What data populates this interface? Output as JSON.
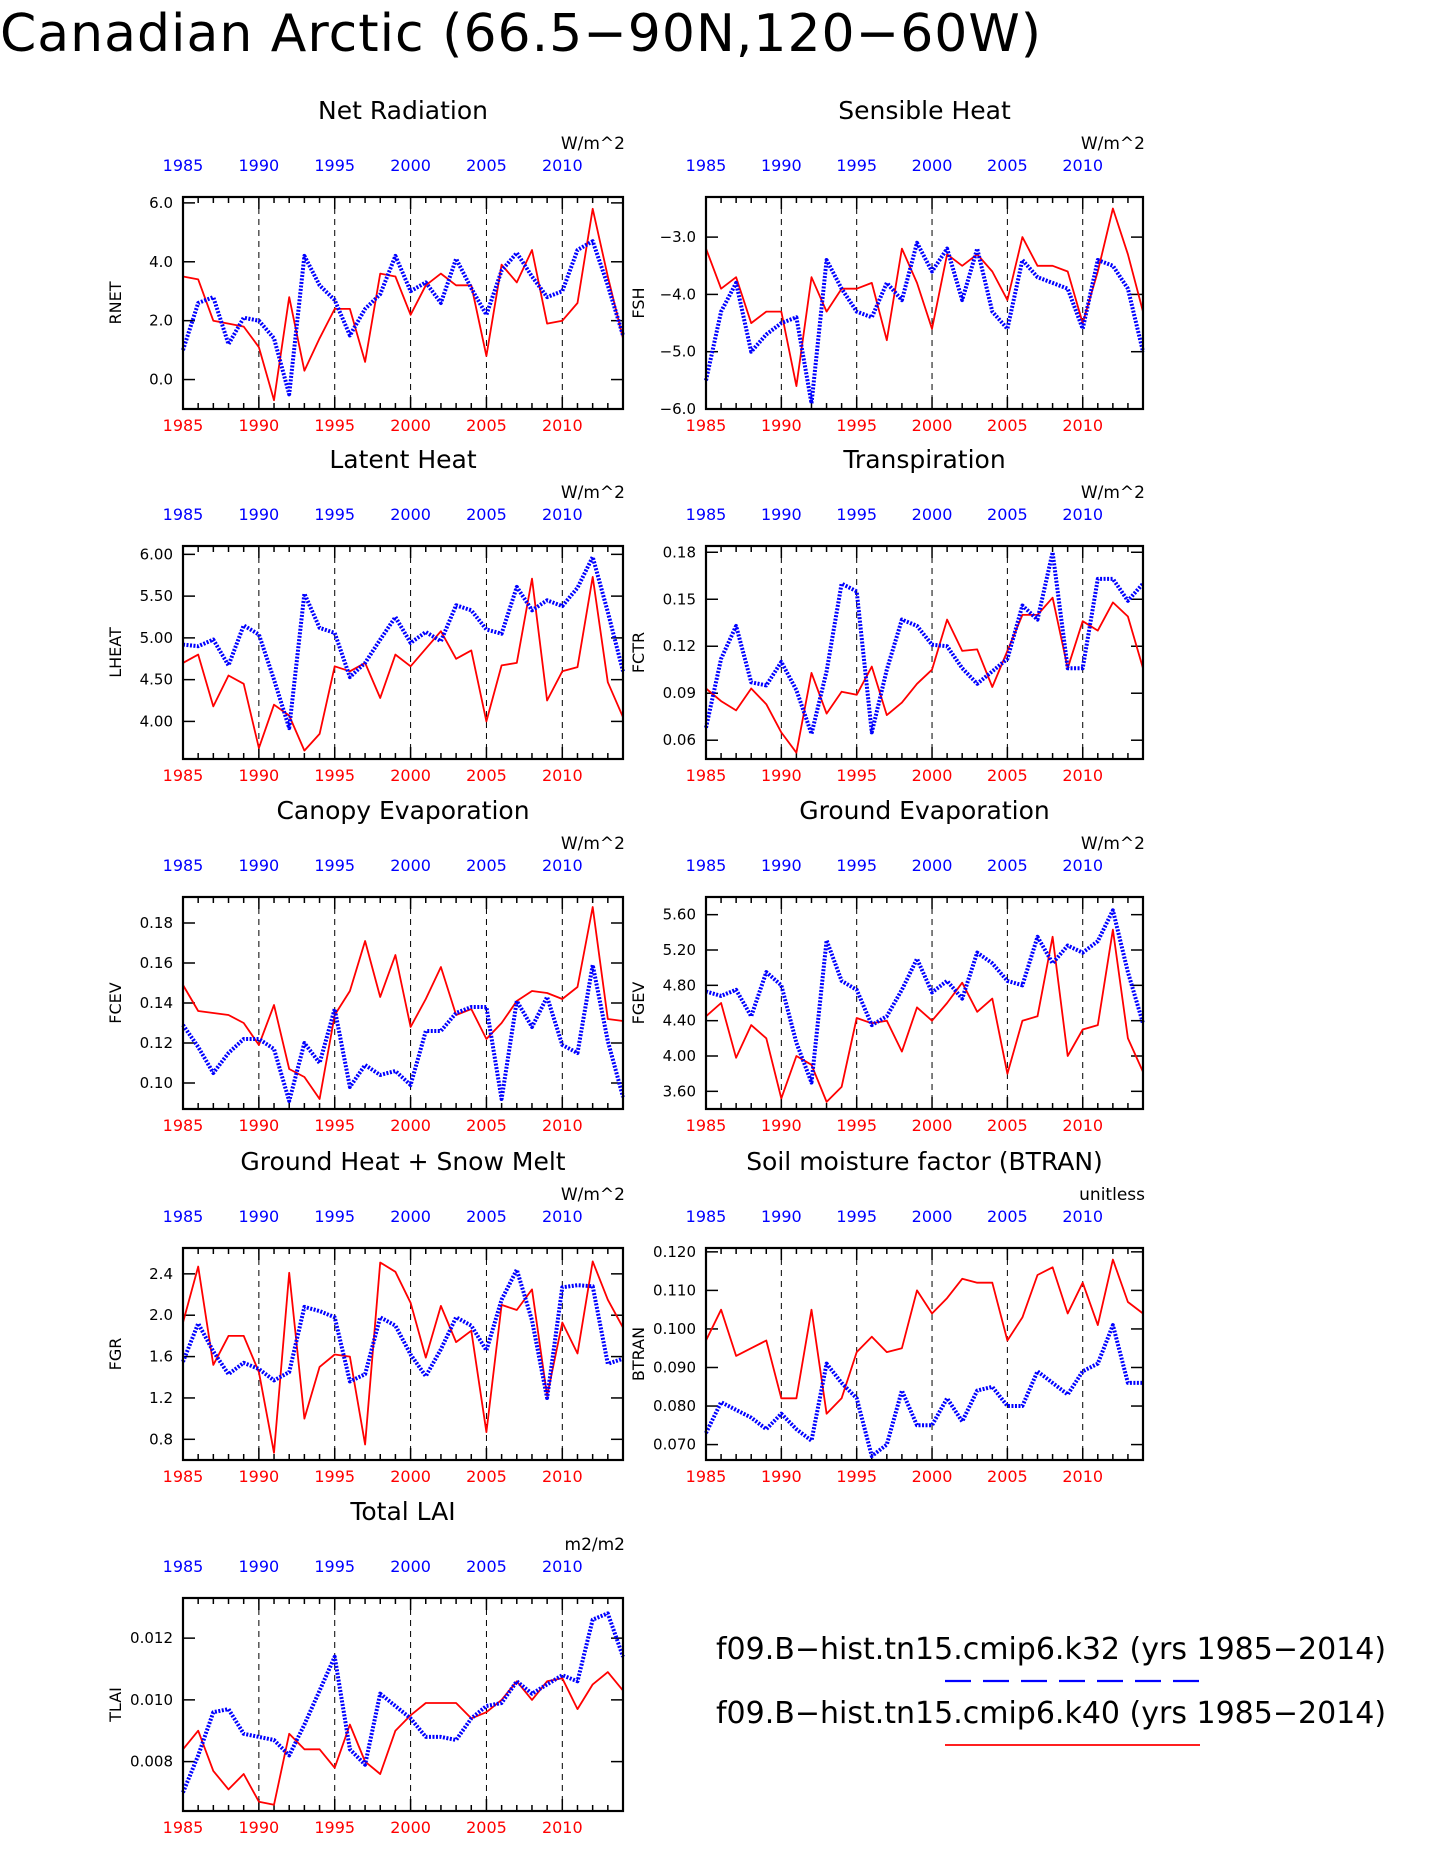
{
  "title": "Canadian Arctic (66.5−90N,120−60W)",
  "colors": {
    "k32": "#0000ff",
    "k40": "#ff0000",
    "axis": "#000000"
  },
  "years": [
    1985,
    1986,
    1987,
    1988,
    1989,
    1990,
    1991,
    1992,
    1993,
    1994,
    1995,
    1996,
    1997,
    1998,
    1999,
    2000,
    2001,
    2002,
    2003,
    2004,
    2005,
    2006,
    2007,
    2008,
    2009,
    2010,
    2011,
    2012,
    2013,
    2014
  ],
  "legend": [
    {
      "label": "f09.B−hist.tn15.cmip6.k32 (yrs 1985−2014)",
      "color": "#0000ff",
      "style": "dashed"
    },
    {
      "label": "f09.B−hist.tn15.cmip6.k40 (yrs 1985−2014)",
      "color": "#ff0000",
      "style": "solid"
    }
  ],
  "chart_data": [
    {
      "type": "line",
      "title": "Net Radiation",
      "ylabel": "RNET",
      "units": "W/m^2",
      "xlim": [
        1985,
        2014
      ],
      "xticks": [
        1985,
        1990,
        1995,
        2000,
        2005,
        2010
      ],
      "ylim": [
        -1.0,
        6.2
      ],
      "yticks": [
        "0.0",
        "2.0",
        "4.0",
        "6.0"
      ],
      "series": [
        {
          "values": [
            1.0,
            2.6,
            2.8,
            1.2,
            2.1,
            2.0,
            1.4,
            -0.5,
            4.2,
            3.2,
            2.7,
            1.5,
            2.4,
            2.9,
            4.2,
            3.0,
            3.3,
            2.6,
            4.1,
            3.1,
            2.2,
            3.7,
            4.3,
            3.5,
            2.8,
            3.0,
            4.4,
            4.7,
            3.2,
            1.5
          ]
        },
        {
          "values": [
            3.5,
            3.4,
            2.0,
            1.9,
            1.8,
            1.1,
            -0.7,
            2.8,
            0.3,
            1.4,
            2.4,
            2.4,
            0.6,
            3.6,
            3.5,
            2.2,
            3.2,
            3.6,
            3.2,
            3.2,
            0.8,
            3.9,
            3.3,
            4.4,
            1.9,
            2.0,
            2.6,
            5.8,
            3.5,
            1.4
          ]
        }
      ]
    },
    {
      "type": "line",
      "title": "Sensible Heat",
      "ylabel": "FSH",
      "units": "W/m^2",
      "xlim": [
        1985,
        2014
      ],
      "xticks": [
        1985,
        1990,
        1995,
        2000,
        2005,
        2010
      ],
      "ylim": [
        -6.0,
        -2.3
      ],
      "yticks": [
        "−3.0",
        "−4.0",
        "−5.0",
        "−6.0"
      ],
      "series": [
        {
          "values": [
            -5.5,
            -4.3,
            -3.8,
            -5.0,
            -4.7,
            -4.5,
            -4.4,
            -5.9,
            -3.4,
            -3.9,
            -4.3,
            -4.4,
            -3.8,
            -4.1,
            -3.1,
            -3.6,
            -3.2,
            -4.1,
            -3.2,
            -4.3,
            -4.6,
            -3.4,
            -3.7,
            -3.8,
            -3.9,
            -4.6,
            -3.4,
            -3.5,
            -3.9,
            -5.0
          ]
        },
        {
          "values": [
            -3.2,
            -3.9,
            -3.7,
            -4.5,
            -4.3,
            -4.3,
            -5.6,
            -3.7,
            -4.3,
            -3.9,
            -3.9,
            -3.8,
            -4.8,
            -3.2,
            -3.8,
            -4.6,
            -3.3,
            -3.5,
            -3.3,
            -3.6,
            -4.1,
            -3.0,
            -3.5,
            -3.5,
            -3.6,
            -4.5,
            -3.6,
            -2.5,
            -3.3,
            -4.3
          ]
        }
      ]
    },
    {
      "type": "line",
      "title": "Latent Heat",
      "ylabel": "LHEAT",
      "units": "W/m^2",
      "xlim": [
        1985,
        2014
      ],
      "xticks": [
        1985,
        1990,
        1995,
        2000,
        2005,
        2010
      ],
      "ylim": [
        3.55,
        6.1
      ],
      "yticks": [
        "4.00",
        "4.50",
        "5.00",
        "5.50",
        "6.00"
      ],
      "series": [
        {
          "values": [
            4.92,
            4.9,
            4.98,
            4.67,
            5.15,
            5.04,
            4.5,
            3.92,
            5.53,
            5.12,
            5.06,
            4.53,
            4.7,
            4.98,
            5.25,
            4.94,
            5.07,
            4.96,
            5.39,
            5.33,
            5.1,
            5.05,
            5.61,
            5.33,
            5.45,
            5.38,
            5.6,
            5.97,
            5.31,
            4.6
          ]
        },
        {
          "values": [
            4.7,
            4.8,
            4.18,
            4.55,
            4.45,
            3.68,
            4.2,
            4.07,
            3.65,
            3.85,
            4.66,
            4.6,
            4.7,
            4.28,
            4.8,
            4.66,
            4.87,
            5.08,
            4.75,
            4.85,
            4.0,
            4.67,
            4.7,
            5.71,
            4.25,
            4.6,
            4.65,
            5.73,
            4.47,
            4.05
          ]
        }
      ]
    },
    {
      "type": "line",
      "title": "Transpiration",
      "ylabel": "FCTR",
      "units": "W/m^2",
      "xlim": [
        1985,
        2014
      ],
      "xticks": [
        1985,
        1990,
        1995,
        2000,
        2005,
        2010
      ],
      "ylim": [
        0.048,
        0.184
      ],
      "yticks": [
        "0.06",
        "0.09",
        "0.12",
        "0.15",
        "0.18"
      ],
      "series": [
        {
          "values": [
            0.068,
            0.112,
            0.133,
            0.097,
            0.095,
            0.11,
            0.092,
            0.064,
            0.104,
            0.16,
            0.155,
            0.065,
            0.105,
            0.137,
            0.133,
            0.121,
            0.12,
            0.106,
            0.096,
            0.104,
            0.112,
            0.146,
            0.137,
            0.18,
            0.106,
            0.106,
            0.163,
            0.163,
            0.149,
            0.16
          ]
        },
        {
          "values": [
            0.093,
            0.085,
            0.079,
            0.093,
            0.083,
            0.065,
            0.052,
            0.103,
            0.077,
            0.091,
            0.089,
            0.107,
            0.076,
            0.084,
            0.096,
            0.105,
            0.137,
            0.117,
            0.118,
            0.094,
            0.117,
            0.14,
            0.14,
            0.151,
            0.106,
            0.136,
            0.13,
            0.148,
            0.139,
            0.106
          ]
        }
      ]
    },
    {
      "type": "line",
      "title": "Canopy Evaporation",
      "ylabel": "FCEV",
      "units": "W/m^2",
      "xlim": [
        1985,
        2014
      ],
      "xticks": [
        1985,
        1990,
        1995,
        2000,
        2005,
        2010
      ],
      "ylim": [
        0.087,
        0.193
      ],
      "yticks": [
        "0.10",
        "0.12",
        "0.14",
        "0.16",
        "0.18"
      ],
      "series": [
        {
          "values": [
            0.129,
            0.118,
            0.105,
            0.115,
            0.122,
            0.122,
            0.117,
            0.091,
            0.12,
            0.11,
            0.137,
            0.098,
            0.109,
            0.104,
            0.106,
            0.099,
            0.126,
            0.126,
            0.135,
            0.138,
            0.138,
            0.092,
            0.141,
            0.128,
            0.143,
            0.119,
            0.115,
            0.159,
            0.121,
            0.093
          ]
        },
        {
          "values": [
            0.149,
            0.136,
            0.135,
            0.134,
            0.13,
            0.119,
            0.139,
            0.107,
            0.103,
            0.092,
            0.134,
            0.146,
            0.171,
            0.143,
            0.164,
            0.128,
            0.142,
            0.158,
            0.134,
            0.137,
            0.122,
            0.13,
            0.141,
            0.146,
            0.145,
            0.142,
            0.148,
            0.188,
            0.132,
            0.131
          ]
        }
      ]
    },
    {
      "type": "line",
      "title": "Ground Evaporation",
      "ylabel": "FGEV",
      "units": "W/m^2",
      "xlim": [
        1985,
        2014
      ],
      "xticks": [
        1985,
        1990,
        1995,
        2000,
        2005,
        2010
      ],
      "ylim": [
        3.4,
        5.8
      ],
      "yticks": [
        "3.60",
        "4.00",
        "4.40",
        "4.80",
        "5.20",
        "5.60"
      ],
      "series": [
        {
          "values": [
            4.73,
            4.68,
            4.75,
            4.45,
            4.95,
            4.8,
            4.15,
            3.7,
            5.31,
            4.85,
            4.75,
            4.35,
            4.45,
            4.75,
            5.1,
            4.72,
            4.85,
            4.65,
            5.17,
            5.05,
            4.85,
            4.8,
            5.35,
            5.05,
            5.25,
            5.17,
            5.3,
            5.65,
            4.95,
            4.37
          ]
        },
        {
          "values": [
            4.45,
            4.6,
            3.98,
            4.35,
            4.2,
            3.52,
            4.0,
            3.9,
            3.48,
            3.65,
            4.43,
            4.37,
            4.4,
            4.05,
            4.55,
            4.4,
            4.6,
            4.83,
            4.5,
            4.65,
            3.8,
            4.4,
            4.45,
            5.35,
            4.0,
            4.3,
            4.35,
            5.43,
            4.2,
            3.82
          ]
        }
      ]
    },
    {
      "type": "line",
      "title": "Ground Heat + Snow Melt",
      "ylabel": "FGR",
      "units": "W/m^2",
      "xlim": [
        1985,
        2014
      ],
      "xticks": [
        1985,
        1990,
        1995,
        2000,
        2005,
        2010
      ],
      "ylim": [
        0.6,
        2.65
      ],
      "yticks": [
        "0.8",
        "1.2",
        "1.6",
        "2.0",
        "2.4"
      ],
      "series": [
        {
          "values": [
            1.55,
            1.92,
            1.65,
            1.43,
            1.54,
            1.48,
            1.37,
            1.45,
            2.08,
            2.04,
            1.98,
            1.36,
            1.43,
            1.98,
            1.9,
            1.62,
            1.41,
            1.67,
            1.98,
            1.9,
            1.66,
            2.15,
            2.44,
            1.95,
            1.2,
            2.27,
            2.29,
            2.28,
            1.53,
            1.58
          ]
        },
        {
          "values": [
            1.93,
            2.47,
            1.52,
            1.8,
            1.8,
            1.45,
            0.67,
            2.41,
            1.0,
            1.5,
            1.62,
            1.6,
            0.75,
            2.51,
            2.42,
            2.12,
            1.59,
            2.09,
            1.74,
            1.85,
            0.87,
            2.1,
            2.05,
            2.25,
            1.22,
            1.93,
            1.63,
            2.52,
            2.15,
            1.88
          ]
        }
      ]
    },
    {
      "type": "line",
      "title": "Soil moisture factor (BTRAN)",
      "ylabel": "BTRAN",
      "units": "unitless",
      "xlim": [
        1985,
        2014
      ],
      "xticks": [
        1985,
        1990,
        1995,
        2000,
        2005,
        2010
      ],
      "ylim": [
        0.066,
        0.121
      ],
      "yticks": [
        "0.070",
        "0.080",
        "0.090",
        "0.100",
        "0.110",
        "0.120"
      ],
      "series": [
        {
          "values": [
            0.073,
            0.081,
            0.079,
            0.077,
            0.074,
            0.078,
            0.074,
            0.071,
            0.091,
            0.086,
            0.082,
            0.067,
            0.07,
            0.084,
            0.075,
            0.075,
            0.082,
            0.076,
            0.084,
            0.085,
            0.08,
            0.08,
            0.089,
            0.086,
            0.083,
            0.089,
            0.091,
            0.101,
            0.086,
            0.086
          ]
        },
        {
          "values": [
            0.097,
            0.105,
            0.093,
            0.095,
            0.097,
            0.082,
            0.082,
            0.105,
            0.078,
            0.082,
            0.094,
            0.098,
            0.094,
            0.095,
            0.11,
            0.104,
            0.108,
            0.113,
            0.112,
            0.112,
            0.097,
            0.103,
            0.114,
            0.116,
            0.104,
            0.112,
            0.101,
            0.118,
            0.107,
            0.104
          ]
        }
      ]
    },
    {
      "type": "line",
      "title": "Total LAI",
      "ylabel": "TLAI",
      "units": "m2/m2",
      "xlim": [
        1985,
        2014
      ],
      "xticks": [
        1985,
        1990,
        1995,
        2000,
        2005,
        2010
      ],
      "ylim": [
        0.0064,
        0.0133
      ],
      "yticks": [
        "0.008",
        "0.010",
        "0.012"
      ],
      "series": [
        {
          "values": [
            0.007,
            0.0082,
            0.0096,
            0.0097,
            0.0089,
            0.0088,
            0.0087,
            0.0082,
            0.0092,
            0.0103,
            0.0114,
            0.0084,
            0.0079,
            0.0102,
            0.0098,
            0.0094,
            0.0088,
            0.0088,
            0.0087,
            0.0094,
            0.0098,
            0.0099,
            0.0106,
            0.0102,
            0.0105,
            0.0108,
            0.0106,
            0.0126,
            0.0128,
            0.0114
          ]
        },
        {
          "values": [
            0.0084,
            0.009,
            0.0077,
            0.0071,
            0.0076,
            0.0067,
            0.0066,
            0.0089,
            0.0084,
            0.0084,
            0.0078,
            0.0092,
            0.008,
            0.0076,
            0.009,
            0.0095,
            0.0099,
            0.0099,
            0.0099,
            0.0094,
            0.0096,
            0.01,
            0.0106,
            0.01,
            0.0106,
            0.0107,
            0.0097,
            0.0105,
            0.0109,
            0.0103
          ]
        }
      ]
    }
  ]
}
